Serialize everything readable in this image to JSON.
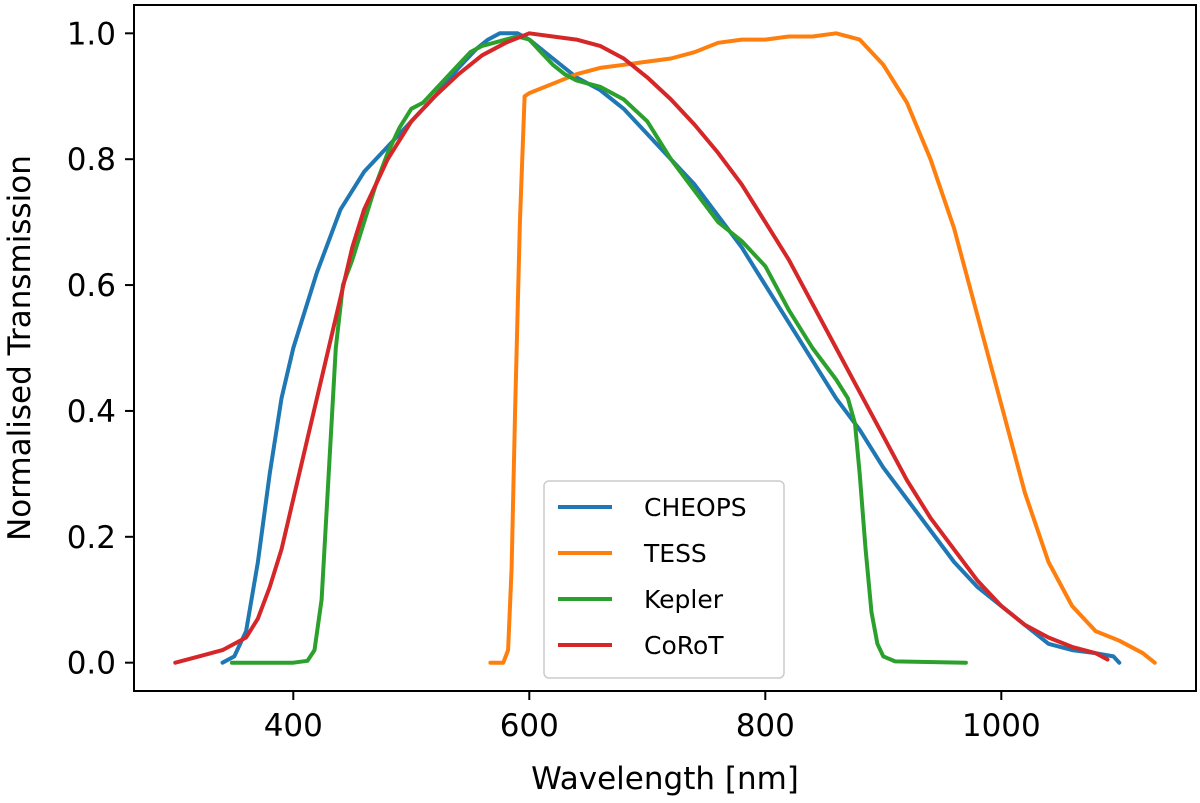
{
  "chart_data": {
    "type": "line",
    "title": "",
    "xlabel": "Wavelength [nm]",
    "ylabel": "Normalised Transmission",
    "xlim": [
      265,
      1165
    ],
    "ylim": [
      -0.045,
      1.045
    ],
    "xticks": [
      400,
      600,
      800,
      1000
    ],
    "yticks": [
      0.0,
      0.2,
      0.4,
      0.6,
      0.8,
      1.0
    ],
    "xtick_labels": [
      "400",
      "600",
      "800",
      "1000"
    ],
    "ytick_labels": [
      "0.0",
      "0.2",
      "0.4",
      "0.6",
      "0.8",
      "1.0"
    ],
    "grid": false,
    "legend_position": "lower-center",
    "series": [
      {
        "name": "CHEOPS",
        "color": "#1f77b4",
        "points": [
          [
            340,
            0.0
          ],
          [
            350,
            0.01
          ],
          [
            360,
            0.05
          ],
          [
            370,
            0.16
          ],
          [
            380,
            0.3
          ],
          [
            390,
            0.42
          ],
          [
            400,
            0.5
          ],
          [
            420,
            0.62
          ],
          [
            440,
            0.72
          ],
          [
            460,
            0.78
          ],
          [
            480,
            0.82
          ],
          [
            500,
            0.86
          ],
          [
            520,
            0.9
          ],
          [
            540,
            0.945
          ],
          [
            555,
            0.975
          ],
          [
            565,
            0.99
          ],
          [
            575,
            1.0
          ],
          [
            590,
            1.0
          ],
          [
            600,
            0.99
          ],
          [
            620,
            0.96
          ],
          [
            640,
            0.93
          ],
          [
            660,
            0.91
          ],
          [
            680,
            0.88
          ],
          [
            700,
            0.84
          ],
          [
            720,
            0.8
          ],
          [
            740,
            0.76
          ],
          [
            760,
            0.71
          ],
          [
            780,
            0.66
          ],
          [
            800,
            0.6
          ],
          [
            820,
            0.54
          ],
          [
            840,
            0.48
          ],
          [
            860,
            0.42
          ],
          [
            880,
            0.37
          ],
          [
            900,
            0.31
          ],
          [
            920,
            0.26
          ],
          [
            940,
            0.21
          ],
          [
            960,
            0.16
          ],
          [
            980,
            0.12
          ],
          [
            1000,
            0.09
          ],
          [
            1020,
            0.06
          ],
          [
            1040,
            0.03
          ],
          [
            1060,
            0.02
          ],
          [
            1080,
            0.015
          ],
          [
            1095,
            0.01
          ],
          [
            1100,
            0.0
          ]
        ]
      },
      {
        "name": "TESS",
        "color": "#ff7f0e",
        "points": [
          [
            567,
            0.0
          ],
          [
            578,
            0.0
          ],
          [
            582,
            0.02
          ],
          [
            585,
            0.15
          ],
          [
            588,
            0.4
          ],
          [
            592,
            0.7
          ],
          [
            596,
            0.9
          ],
          [
            600,
            0.905
          ],
          [
            620,
            0.92
          ],
          [
            640,
            0.935
          ],
          [
            660,
            0.945
          ],
          [
            680,
            0.95
          ],
          [
            700,
            0.955
          ],
          [
            720,
            0.96
          ],
          [
            740,
            0.97
          ],
          [
            760,
            0.985
          ],
          [
            780,
            0.99
          ],
          [
            800,
            0.99
          ],
          [
            820,
            0.995
          ],
          [
            840,
            0.995
          ],
          [
            860,
            1.0
          ],
          [
            880,
            0.99
          ],
          [
            900,
            0.95
          ],
          [
            920,
            0.89
          ],
          [
            940,
            0.8
          ],
          [
            960,
            0.69
          ],
          [
            980,
            0.55
          ],
          [
            1000,
            0.41
          ],
          [
            1020,
            0.27
          ],
          [
            1040,
            0.16
          ],
          [
            1060,
            0.09
          ],
          [
            1080,
            0.05
          ],
          [
            1100,
            0.035
          ],
          [
            1120,
            0.015
          ],
          [
            1130,
            0.0
          ]
        ]
      },
      {
        "name": "Kepler",
        "color": "#2ca02c",
        "points": [
          [
            348,
            0.0
          ],
          [
            400,
            0.0
          ],
          [
            412,
            0.003
          ],
          [
            418,
            0.02
          ],
          [
            424,
            0.1
          ],
          [
            430,
            0.3
          ],
          [
            436,
            0.5
          ],
          [
            442,
            0.6
          ],
          [
            450,
            0.64
          ],
          [
            460,
            0.7
          ],
          [
            470,
            0.76
          ],
          [
            480,
            0.81
          ],
          [
            490,
            0.85
          ],
          [
            500,
            0.88
          ],
          [
            510,
            0.89
          ],
          [
            520,
            0.91
          ],
          [
            530,
            0.93
          ],
          [
            540,
            0.95
          ],
          [
            550,
            0.97
          ],
          [
            560,
            0.98
          ],
          [
            570,
            0.985
          ],
          [
            580,
            0.99
          ],
          [
            590,
            0.995
          ],
          [
            600,
            0.99
          ],
          [
            610,
            0.97
          ],
          [
            620,
            0.95
          ],
          [
            630,
            0.935
          ],
          [
            640,
            0.925
          ],
          [
            660,
            0.915
          ],
          [
            680,
            0.895
          ],
          [
            700,
            0.86
          ],
          [
            720,
            0.8
          ],
          [
            740,
            0.75
          ],
          [
            760,
            0.7
          ],
          [
            780,
            0.67
          ],
          [
            800,
            0.63
          ],
          [
            820,
            0.56
          ],
          [
            840,
            0.5
          ],
          [
            860,
            0.45
          ],
          [
            870,
            0.42
          ],
          [
            876,
            0.38
          ],
          [
            880,
            0.3
          ],
          [
            885,
            0.18
          ],
          [
            890,
            0.08
          ],
          [
            895,
            0.03
          ],
          [
            900,
            0.01
          ],
          [
            910,
            0.002
          ],
          [
            970,
            0.0
          ]
        ]
      },
      {
        "name": "CoRoT",
        "color": "#d62728",
        "points": [
          [
            300,
            0.0
          ],
          [
            320,
            0.01
          ],
          [
            340,
            0.02
          ],
          [
            360,
            0.04
          ],
          [
            370,
            0.07
          ],
          [
            380,
            0.12
          ],
          [
            390,
            0.18
          ],
          [
            400,
            0.26
          ],
          [
            410,
            0.34
          ],
          [
            420,
            0.42
          ],
          [
            430,
            0.5
          ],
          [
            440,
            0.58
          ],
          [
            450,
            0.66
          ],
          [
            460,
            0.72
          ],
          [
            470,
            0.76
          ],
          [
            480,
            0.8
          ],
          [
            490,
            0.83
          ],
          [
            500,
            0.86
          ],
          [
            520,
            0.9
          ],
          [
            540,
            0.935
          ],
          [
            560,
            0.965
          ],
          [
            580,
            0.985
          ],
          [
            600,
            1.0
          ],
          [
            620,
            0.995
          ],
          [
            640,
            0.99
          ],
          [
            660,
            0.98
          ],
          [
            680,
            0.96
          ],
          [
            700,
            0.93
          ],
          [
            720,
            0.895
          ],
          [
            740,
            0.855
          ],
          [
            760,
            0.81
          ],
          [
            780,
            0.76
          ],
          [
            800,
            0.7
          ],
          [
            820,
            0.64
          ],
          [
            840,
            0.57
          ],
          [
            860,
            0.5
          ],
          [
            880,
            0.43
          ],
          [
            900,
            0.36
          ],
          [
            920,
            0.29
          ],
          [
            940,
            0.23
          ],
          [
            960,
            0.18
          ],
          [
            980,
            0.13
          ],
          [
            1000,
            0.09
          ],
          [
            1020,
            0.06
          ],
          [
            1040,
            0.04
          ],
          [
            1060,
            0.025
          ],
          [
            1080,
            0.015
          ],
          [
            1090,
            0.005
          ]
        ]
      }
    ]
  }
}
